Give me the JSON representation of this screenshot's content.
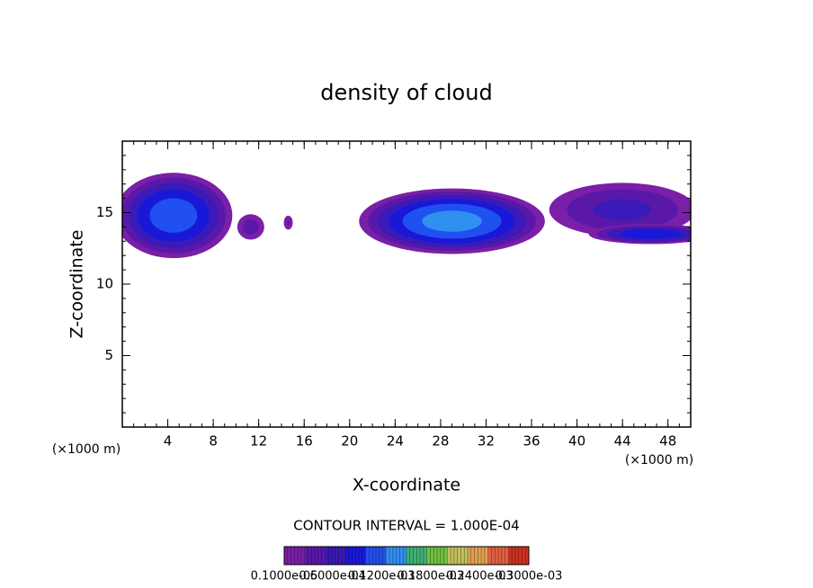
{
  "chart_data": {
    "type": "contour",
    "title": "density of cloud",
    "xlabel": "X-coordinate",
    "ylabel": "Z-coordinate",
    "x_unit_left": "(×1000 m)",
    "x_unit_right": "(×1000 m)",
    "xlim": [
      0,
      50
    ],
    "xticks": [
      4,
      8,
      12,
      16,
      20,
      24,
      28,
      32,
      36,
      40,
      44,
      48
    ],
    "ylim": [
      0,
      20
    ],
    "yticks": [
      5,
      10,
      15
    ],
    "blobs": [
      {
        "cx": 4.5,
        "cz": 14.8,
        "rx": 5.2,
        "rz": 3.0,
        "peak": 0.00012
      },
      {
        "cx": 11.3,
        "cz": 14.0,
        "rx": 1.2,
        "rz": 0.9,
        "peak": 4e-05
      },
      {
        "cx": 14.6,
        "cz": 14.3,
        "rx": 0.4,
        "rz": 0.5,
        "peak": 3e-05
      },
      {
        "cx": 29.0,
        "cz": 14.4,
        "rx": 8.2,
        "rz": 2.3,
        "peak": 0.00014
      },
      {
        "cx": 44.0,
        "cz": 15.2,
        "rx": 6.5,
        "rz": 1.9,
        "peak": 6e-05
      },
      {
        "cx": 46.5,
        "cz": 13.5,
        "rx": 5.5,
        "rz": 0.7,
        "peak": 0.0001
      }
    ],
    "contour_interval_text": "CONTOUR INTERVAL = 1.000E-04",
    "colorbar": {
      "colors": [
        "#7a1fa8",
        "#5a18a8",
        "#3a1ab8",
        "#1a18d8",
        "#2050f0",
        "#3090f0",
        "#40b070",
        "#70c040",
        "#c0c060",
        "#e0a050",
        "#e06040",
        "#d03020"
      ],
      "ticks": [
        {
          "value": 1e-06,
          "label": "0.1000e-05"
        },
        {
          "value": 6e-05,
          "label": "0.6000e-04"
        },
        {
          "value": 0.00012,
          "label": "0.1200e-03"
        },
        {
          "value": 0.00018,
          "label": "0.1800e-03"
        },
        {
          "value": 0.00024,
          "label": "0.2400e-03"
        },
        {
          "value": 0.0003,
          "label": "0.3000e-03"
        }
      ]
    }
  }
}
